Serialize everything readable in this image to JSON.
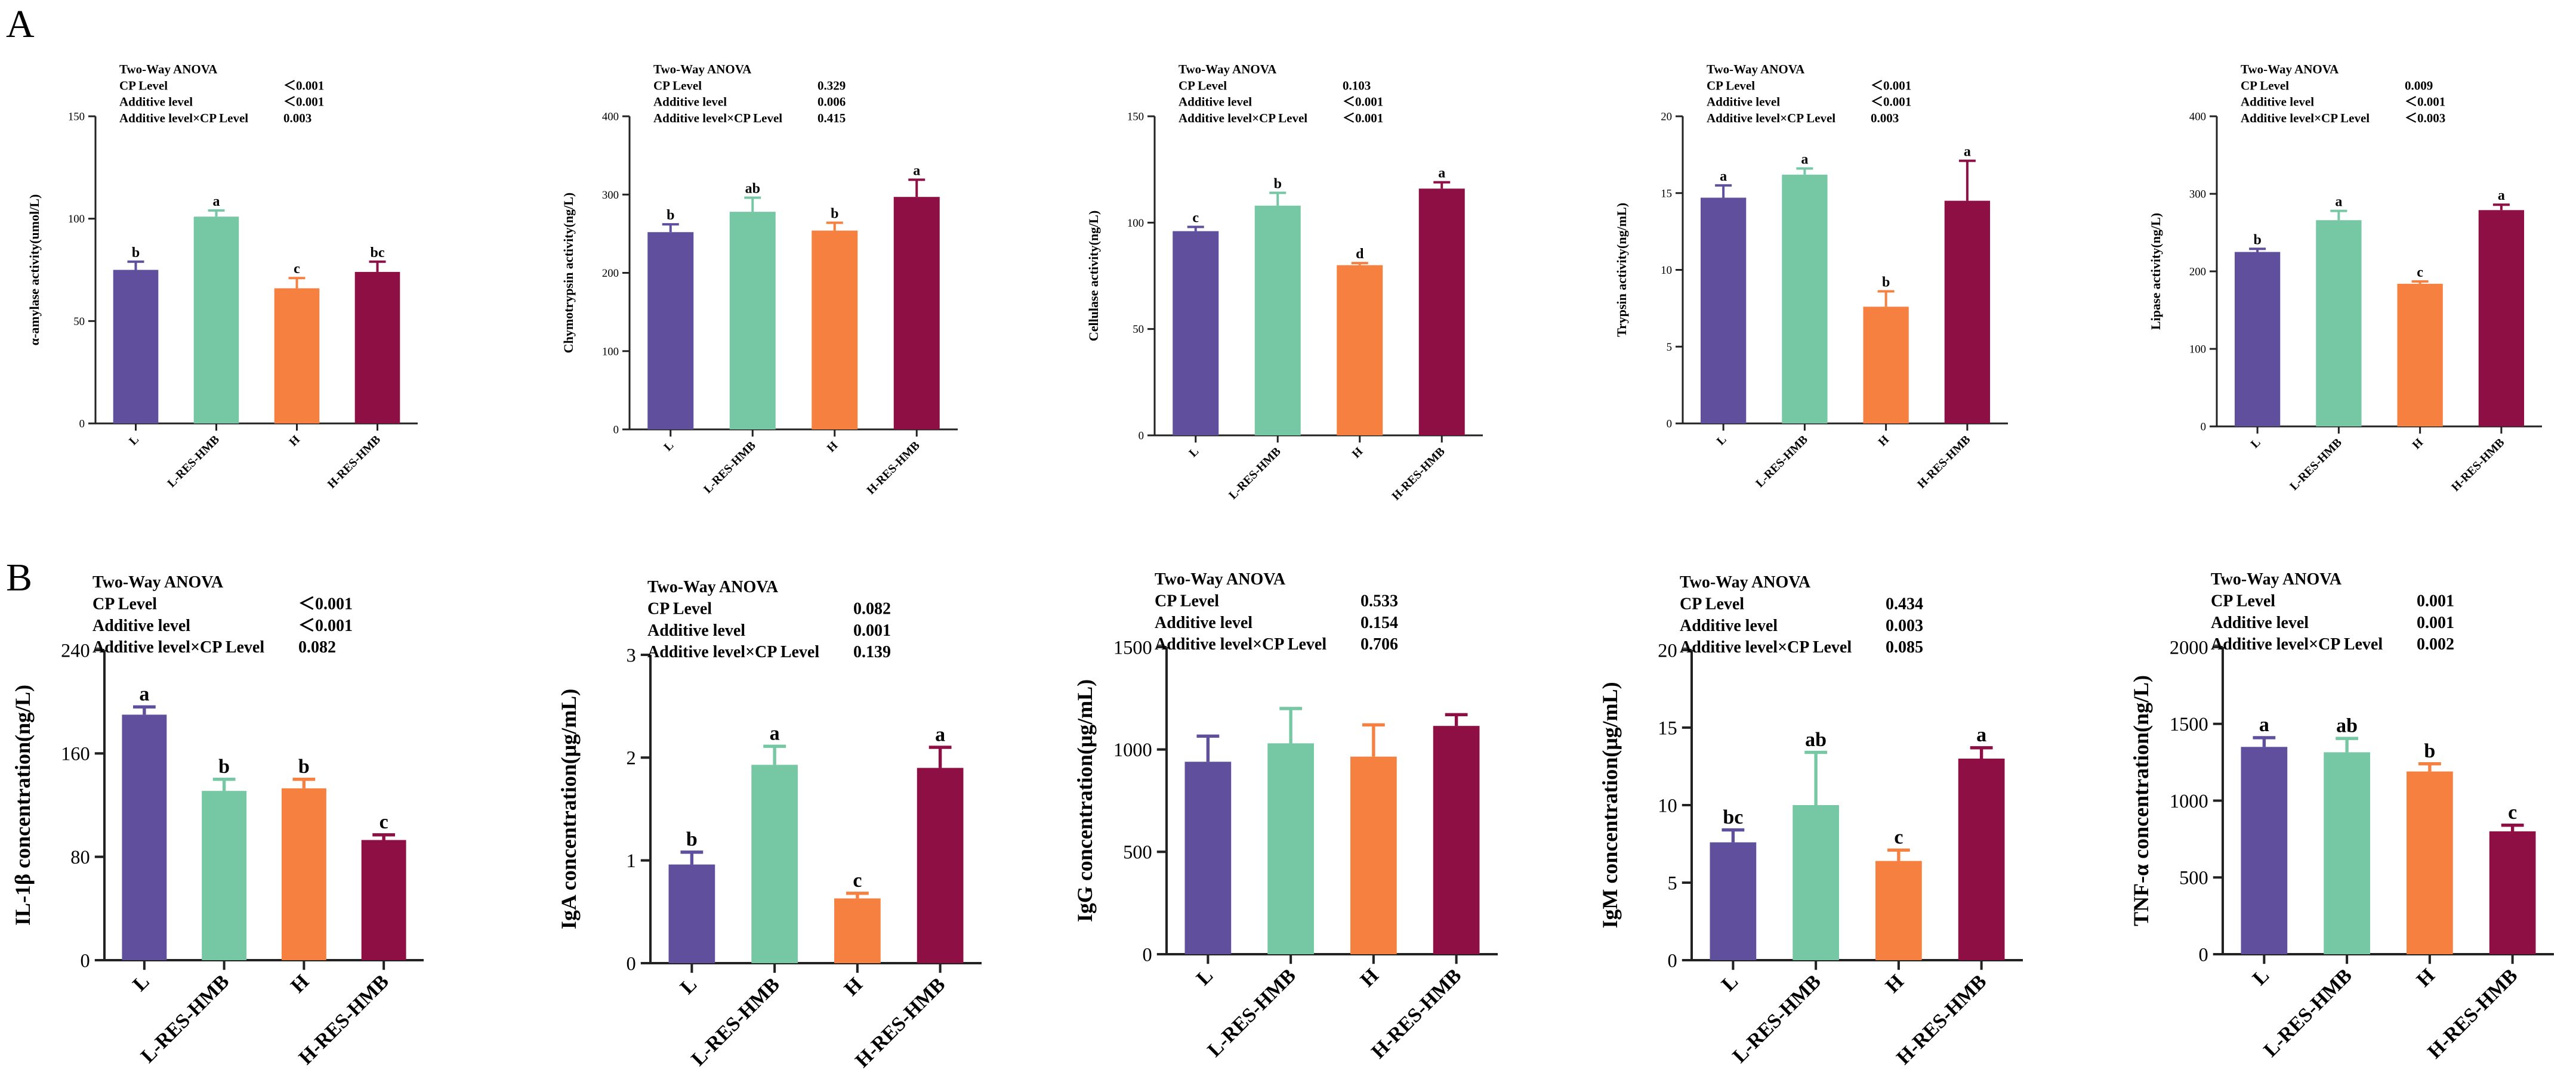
{
  "figure": {
    "panel_labels": [
      "A",
      "B"
    ],
    "group_colors": [
      "#5F4F9C",
      "#76C7A4",
      "#F58040",
      "#8D0F44"
    ]
  },
  "chart_data": [
    {
      "type": "bar",
      "panel": "A",
      "categories": [
        "L",
        "L-RES-HMB",
        "H",
        "H-RES-HMB"
      ],
      "values": [
        75,
        101,
        66,
        74
      ],
      "errors": [
        4,
        3,
        5,
        5
      ],
      "letters": [
        "b",
        "a",
        "c",
        "bc"
      ],
      "ylabel": "α-amylase activity(umol/L)",
      "ylim": [
        0,
        150
      ],
      "yticks": [
        0,
        50,
        100,
        150
      ],
      "anova": {
        "title": "Two-Way ANOVA",
        "rows": [
          {
            "label": "CP Level",
            "value": "＜0.001"
          },
          {
            "label": "Additive level",
            "value": "＜0.001"
          },
          {
            "label": "Additive level×CP Level",
            "value": "0.003"
          }
        ]
      }
    },
    {
      "type": "bar",
      "panel": "A",
      "categories": [
        "L",
        "L-RES-HMB",
        "H",
        "H-RES-HMB"
      ],
      "values": [
        252,
        278,
        254,
        297
      ],
      "errors": [
        10,
        18,
        10,
        22
      ],
      "letters": [
        "b",
        "ab",
        "b",
        "a"
      ],
      "ylabel": "Chymotrypsin activity(ng/L)",
      "ylim": [
        0,
        400
      ],
      "yticks": [
        0,
        100,
        200,
        300,
        400
      ],
      "anova": {
        "title": "Two-Way ANOVA",
        "rows": [
          {
            "label": "CP Level",
            "value": "0.329"
          },
          {
            "label": "Additive level",
            "value": "0.006"
          },
          {
            "label": "Additive level×CP Level",
            "value": "0.415"
          }
        ]
      }
    },
    {
      "type": "bar",
      "panel": "A",
      "categories": [
        "L",
        "L-RES-HMB",
        "H",
        "H-RES-HMB"
      ],
      "values": [
        96,
        108,
        80,
        116
      ],
      "errors": [
        2,
        6,
        1,
        3
      ],
      "letters": [
        "c",
        "b",
        "d",
        "a"
      ],
      "ylabel": "Cellulase activity(ng/L)",
      "ylim": [
        0,
        150
      ],
      "yticks": [
        0,
        50,
        100,
        150
      ],
      "anova": {
        "title": "Two-Way ANOVA",
        "rows": [
          {
            "label": "CP Level",
            "value": "0.103"
          },
          {
            "label": "Additive level",
            "value": "＜0.001"
          },
          {
            "label": "Additive level×CP Level",
            "value": "＜0.001"
          }
        ]
      }
    },
    {
      "type": "bar",
      "panel": "A",
      "categories": [
        "L",
        "L-RES-HMB",
        "H",
        "H-RES-HMB"
      ],
      "values": [
        14.7,
        16.2,
        7.6,
        14.5
      ],
      "errors": [
        0.8,
        0.4,
        1.0,
        2.6
      ],
      "letters": [
        "a",
        "a",
        "b",
        "a"
      ],
      "ylabel": "Trypsin activity(ng/mL)",
      "ylim": [
        0,
        20
      ],
      "yticks": [
        0,
        5,
        10,
        15,
        20
      ],
      "anova": {
        "title": "Two-Way ANOVA",
        "rows": [
          {
            "label": "CP Level",
            "value": "＜0.001"
          },
          {
            "label": "Additive level",
            "value": "＜0.001"
          },
          {
            "label": "Additive level×CP Level",
            "value": "0.003"
          }
        ]
      }
    },
    {
      "type": "bar",
      "panel": "A",
      "categories": [
        "L",
        "L-RES-HMB",
        "H",
        "H-RES-HMB"
      ],
      "values": [
        225,
        266,
        184,
        279
      ],
      "errors": [
        4,
        12,
        3,
        7
      ],
      "letters": [
        "b",
        "a",
        "c",
        "a"
      ],
      "ylabel": "Lipase activity(ng/L)",
      "ylim": [
        0,
        400
      ],
      "yticks": [
        0,
        100,
        200,
        300,
        400
      ],
      "anova": {
        "title": "Two-Way ANOVA",
        "rows": [
          {
            "label": "CP Level",
            "value": "0.009"
          },
          {
            "label": "Additive level",
            "value": "＜0.001"
          },
          {
            "label": "Additive level×CP Level",
            "value": "＜0.003"
          }
        ]
      }
    },
    {
      "type": "bar",
      "panel": "B",
      "categories": [
        "L",
        "L-RES-HMB",
        "H",
        "H-RES-HMB"
      ],
      "values": [
        190,
        131,
        133,
        93
      ],
      "errors": [
        6,
        9,
        7,
        4
      ],
      "letters": [
        "a",
        "b",
        "b",
        "c"
      ],
      "ylabel": "IL-1β concentration(ng/L)",
      "ylim": [
        0,
        240
      ],
      "yticks": [
        0,
        80,
        160,
        240
      ],
      "anova": {
        "title": "Two-Way ANOVA",
        "rows": [
          {
            "label": "CP Level",
            "value": "＜0.001"
          },
          {
            "label": "Additive level",
            "value": "＜0.001"
          },
          {
            "label": "Additive level×CP Level",
            "value": "0.082"
          }
        ]
      }
    },
    {
      "type": "bar",
      "panel": "B",
      "categories": [
        "L",
        "L-RES-HMB",
        "H",
        "H-RES-HMB"
      ],
      "values": [
        0.96,
        1.93,
        0.63,
        1.9
      ],
      "errors": [
        0.12,
        0.18,
        0.05,
        0.2
      ],
      "letters": [
        "b",
        "a",
        "c",
        "a"
      ],
      "ylabel": "IgA concentration(μg/mL)",
      "ylim": [
        0,
        3
      ],
      "yticks": [
        0,
        1,
        2,
        3
      ],
      "anova": {
        "title": "Two-Way ANOVA",
        "rows": [
          {
            "label": "CP Level",
            "value": "0.082"
          },
          {
            "label": "Additive level",
            "value": "0.001"
          },
          {
            "label": "Additive level×CP Level",
            "value": "0.139"
          }
        ]
      }
    },
    {
      "type": "bar",
      "panel": "B",
      "categories": [
        "L",
        "L-RES-HMB",
        "H",
        "H-RES-HMB"
      ],
      "values": [
        940,
        1030,
        965,
        1115
      ],
      "errors": [
        125,
        170,
        155,
        55
      ],
      "letters": [
        "",
        "",
        "",
        ""
      ],
      "ylabel": "IgG concentration(μg/mL)",
      "ylim": [
        0,
        1500
      ],
      "yticks": [
        0,
        500,
        1000,
        1500
      ],
      "anova": {
        "title": "Two-Way ANOVA",
        "rows": [
          {
            "label": "CP Level",
            "value": "0.533"
          },
          {
            "label": "Additive level",
            "value": "0.154"
          },
          {
            "label": "Additive level×CP Level",
            "value": "0.706"
          }
        ]
      }
    },
    {
      "type": "bar",
      "panel": "B",
      "categories": [
        "L",
        "L-RES-HMB",
        "H",
        "H-RES-HMB"
      ],
      "values": [
        7.6,
        10.0,
        6.4,
        13.0
      ],
      "errors": [
        0.8,
        3.4,
        0.7,
        0.7
      ],
      "letters": [
        "bc",
        "ab",
        "c",
        "a"
      ],
      "ylabel": "IgM concentration(μg/mL)",
      "ylim": [
        0,
        20
      ],
      "yticks": [
        0,
        5,
        10,
        15,
        20
      ],
      "anova": {
        "title": "Two-Way ANOVA",
        "rows": [
          {
            "label": "CP Level",
            "value": "0.434"
          },
          {
            "label": "Additive level",
            "value": "0.003"
          },
          {
            "label": "Additive level×CP Level",
            "value": "0.085"
          }
        ]
      }
    },
    {
      "type": "bar",
      "panel": "B",
      "categories": [
        "L",
        "L-RES-HMB",
        "H",
        "H-RES-HMB"
      ],
      "values": [
        1350,
        1315,
        1190,
        800
      ],
      "errors": [
        60,
        90,
        50,
        40
      ],
      "letters": [
        "a",
        "ab",
        "b",
        "c"
      ],
      "ylabel": "TNF-α concentration(ng/L)",
      "ylim": [
        0,
        2000
      ],
      "yticks": [
        0,
        500,
        1000,
        1500,
        2000
      ],
      "anova": {
        "title": "Two-Way ANOVA",
        "rows": [
          {
            "label": "CP Level",
            "value": "0.001"
          },
          {
            "label": "Additive level",
            "value": "0.001"
          },
          {
            "label": "Additive level×CP Level",
            "value": "0.002"
          }
        ]
      }
    }
  ]
}
